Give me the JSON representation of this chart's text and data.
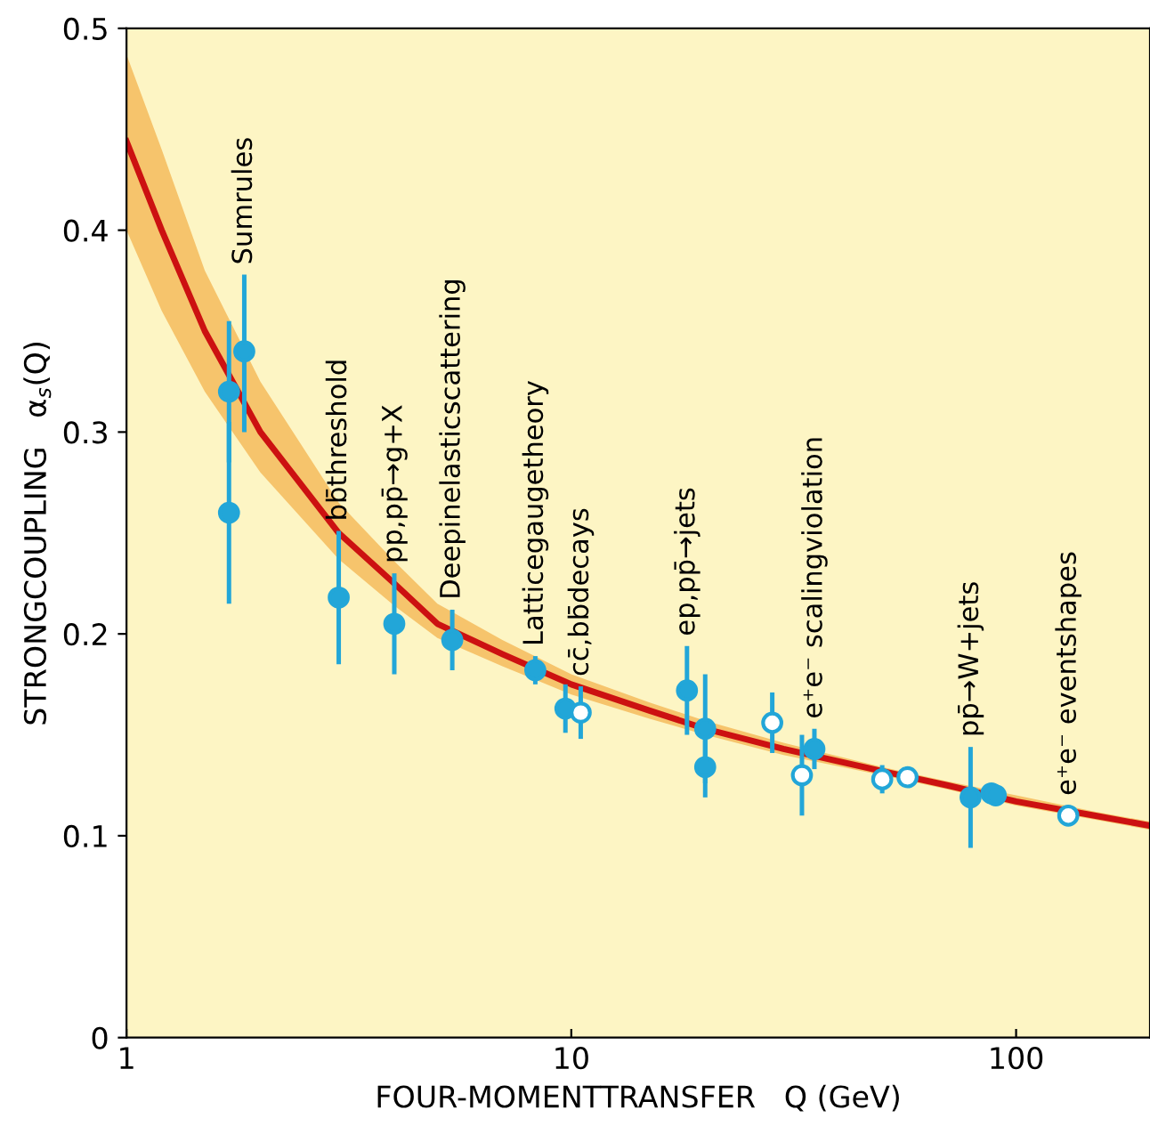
{
  "chart_data": {
    "type": "scatter",
    "xlabel": "FOUR-MOMENTTRANSFER   Q (GeV)",
    "ylabel": "STRONGCOUPLING   α$_{s}$(Q)",
    "log": "x",
    "xlim": [
      1,
      200
    ],
    "xticks": [
      1,
      10,
      100
    ],
    "ylim": [
      0,
      0.5
    ],
    "yticks": [
      0,
      0.1,
      0.2,
      0.3,
      0.4,
      0.5
    ],
    "grid": false,
    "legend": false,
    "series": [
      {
        "type": "line",
        "color": "#cc1111",
        "marker": "none",
        "line_style": "solid",
        "x": [
          1,
          1.2,
          1.5,
          2,
          3,
          4,
          5,
          7,
          10,
          15,
          20,
          30,
          50,
          70,
          100,
          150,
          200
        ],
        "values": [
          0.444,
          0.4,
          0.35,
          0.3,
          0.25,
          0.225,
          0.205,
          0.19,
          0.175,
          0.162,
          0.153,
          0.143,
          0.132,
          0.125,
          0.117,
          0.11,
          0.105
        ],
        "lower": [
          0.4,
          0.36,
          0.32,
          0.28,
          0.237,
          0.214,
          0.198,
          0.184,
          0.17,
          0.158,
          0.15,
          0.14,
          0.13,
          0.123,
          0.115,
          0.108,
          0.103
        ],
        "upper": [
          0.487,
          0.44,
          0.38,
          0.325,
          0.265,
          0.236,
          0.215,
          0.197,
          0.18,
          0.166,
          0.157,
          0.146,
          0.134,
          0.127,
          0.12,
          0.112,
          0.107
        ]
      },
      {
        "color": "#22a6d8",
        "marker": "circle",
        "x": [
          1.7,
          1.84,
          1.7,
          3.0,
          4.0,
          5.4,
          8.3,
          9.7,
          18.2,
          20,
          20,
          35.2,
          79,
          88,
          90
        ],
        "values": [
          0.32,
          0.34,
          0.26,
          0.218,
          0.205,
          0.197,
          0.182,
          0.163,
          0.172,
          0.153,
          0.134,
          0.143,
          0.119,
          0.121,
          0.12
        ],
        "errors": [
          0.035,
          [
            0.3,
            0.378
          ],
          0.045,
          0.033,
          0.025,
          0.015,
          0.007,
          0.012,
          0.022,
          0.027,
          0.015,
          0.01,
          0.025,
          0.003,
          0.003
        ]
      },
      {
        "color": "#22a6d8",
        "marker": "circle",
        "x": [
          10.5,
          28.3,
          33,
          50,
          57,
          131
        ],
        "values": [
          0.161,
          0.156,
          0.13,
          0.128,
          0.129,
          0.11
        ],
        "errors": [
          0.013,
          0.015,
          0.02,
          0.007,
          null,
          0.005
        ]
      }
    ],
    "annotations": [
      {
        "text": "Sumrules",
        "x": 1.84,
        "y": 0.378
      },
      {
        "text": "bb̄threshold",
        "x": 3.0,
        "y": 0.251
      },
      {
        "text": "pp,pp̄→g+X",
        "x": 4.0,
        "y": 0.23
      },
      {
        "text": "Deepinelasticscattering",
        "x": 5.4,
        "y": 0.212
      },
      {
        "text": "Latticegaugetheory",
        "x": 8.3,
        "y": 0.189
      },
      {
        "text": "cc̄,bb̄decays",
        "x": 10.5,
        "y": 0.174
      },
      {
        "text": "ep,pp̄→jets",
        "x": 18.2,
        "y": 0.194
      },
      {
        "text": "e⁺e⁻ scalingviolation",
        "x": 35.2,
        "y": 0.153
      },
      {
        "text": "pp̄→W+jets",
        "x": 79,
        "y": 0.144
      },
      {
        "text": "e⁺e⁻ eventshapes",
        "x": 131,
        "y": 0.115
      }
    ]
  }
}
